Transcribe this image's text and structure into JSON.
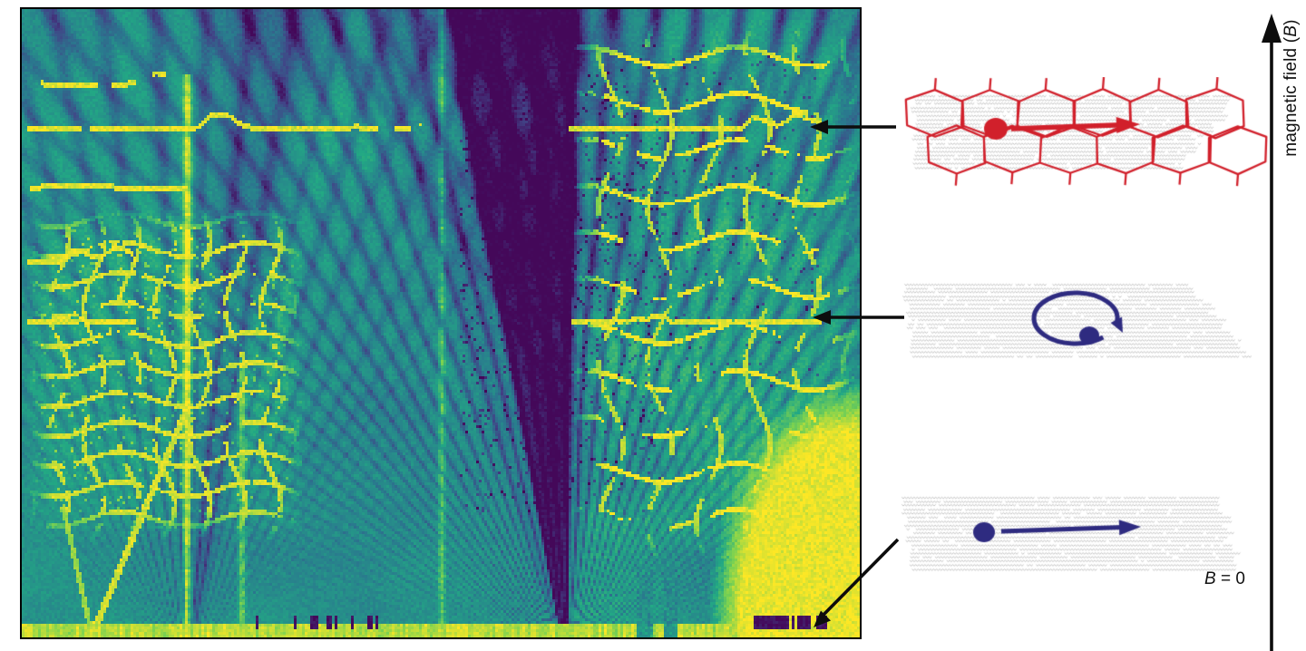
{
  "figure": {
    "axis_label": {
      "pre": "magnetic field (",
      "var": "B",
      "post": ")"
    },
    "zero_field_label": {
      "var": "B",
      "post": " = 0"
    }
  },
  "colors": {
    "background": "#ffffff",
    "panel_border": "#000000",
    "annotation_black": "#0d0d0d",
    "graphene_gray": "#b5b5b5",
    "superlattice_red": "#d1202b",
    "electron_navy": "#2e2b80",
    "viridis_stops": [
      "#440154",
      "#414487",
      "#2a788e",
      "#22a884",
      "#7ad151",
      "#fde725"
    ]
  }
}
